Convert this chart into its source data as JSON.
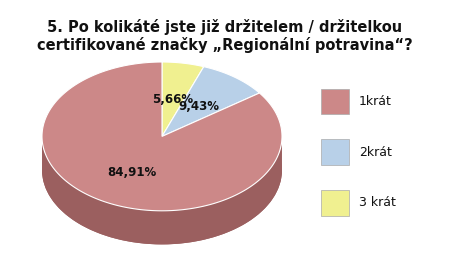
{
  "title_line1": "5. Po kolikáté jste již držitelem / držitelkou",
  "title_line2": "certifikované značky „Regionální potravina“?",
  "slices": [
    84.91,
    9.43,
    5.66
  ],
  "labels": [
    "84,91%",
    "9,43%",
    "5,66%"
  ],
  "legend_labels": [
    "1krát",
    "2krát",
    "3 krát"
  ],
  "colors_top": [
    "#cc8888",
    "#b8d0e8",
    "#f0f090"
  ],
  "colors_side": [
    "#9b5f5f",
    "#8aadcc",
    "#cccc70"
  ],
  "background_color": "#ffffff",
  "title_fontsize": 10.5,
  "label_fontsize": 8.5,
  "legend_fontsize": 9
}
